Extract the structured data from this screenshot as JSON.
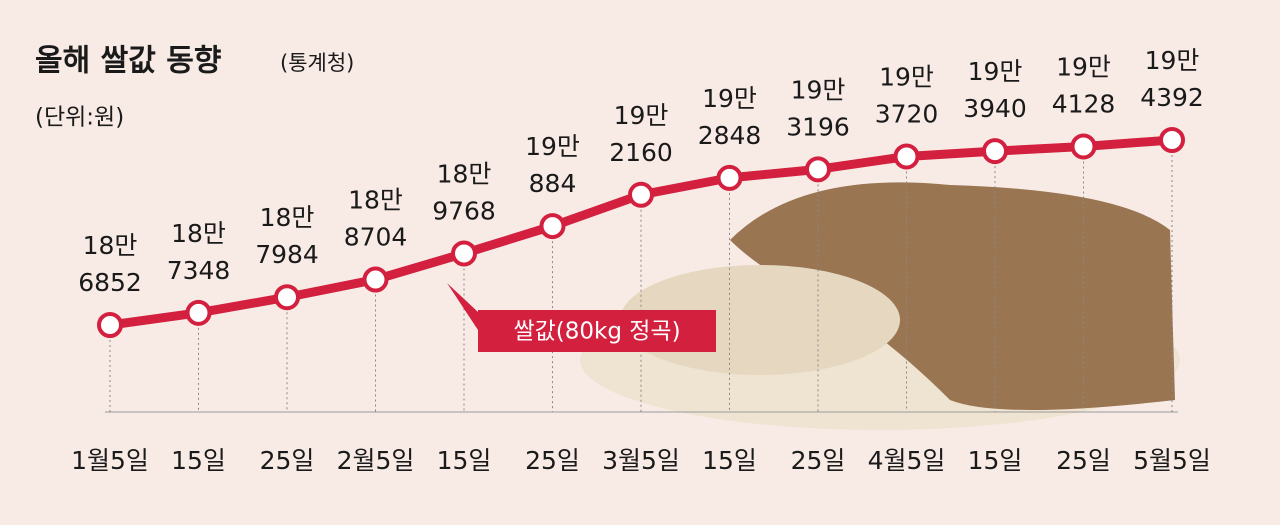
{
  "chart_data": {
    "type": "line",
    "title": "올해 쌀값 동향",
    "subtitle": "(통계청)",
    "unit": "(단위:원)",
    "categories": [
      "1월5일",
      "15일",
      "25일",
      "2월5일",
      "15일",
      "25일",
      "3월5일",
      "15일",
      "25일",
      "4월5일",
      "15일",
      "25일",
      "5월5일"
    ],
    "series": [
      {
        "name": "쌀값(80kg 정곡)",
        "color": "#d3203f",
        "values": [
          186852,
          187348,
          187984,
          188704,
          189768,
          190884,
          192160,
          192848,
          193196,
          193720,
          193940,
          194128,
          194392
        ],
        "value_labels": [
          [
            "18만",
            "6852"
          ],
          [
            "18만",
            "7348"
          ],
          [
            "18만",
            "7984"
          ],
          [
            "18만",
            "8704"
          ],
          [
            "18만",
            "9768"
          ],
          [
            "19만",
            "884"
          ],
          [
            "19만",
            "2160"
          ],
          [
            "19만",
            "2848"
          ],
          [
            "19만",
            "3196"
          ],
          [
            "19만",
            "3720"
          ],
          [
            "19만",
            "3940"
          ],
          [
            "19만",
            "4128"
          ],
          [
            "19만",
            "4392"
          ]
        ]
      }
    ]
  }
}
